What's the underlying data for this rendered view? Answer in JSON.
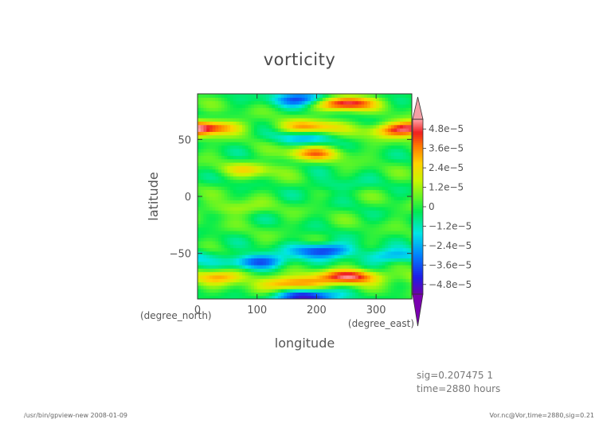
{
  "chart_data": {
    "type": "heatmap",
    "title": "vorticity",
    "xlabel": "longitude",
    "ylabel": "latitude",
    "x_unit": "(degree_east)",
    "y_unit": "(degree_north)",
    "xlim": [
      0,
      360
    ],
    "ylim": [
      -90,
      90
    ],
    "x_ticks": [
      "0",
      "100",
      "200",
      "300"
    ],
    "y_ticks": [
      "50",
      "0",
      "−50"
    ],
    "x_tick_values": [
      0,
      100,
      200,
      300
    ],
    "y_tick_values": [
      50,
      0,
      -50
    ],
    "colorbar": {
      "labels": [
        "4.8e−5",
        "3.6e−5",
        "2.4e−5",
        "1.2e−5",
        "0",
        "−1.2e−5",
        "−2.4e−5",
        "−3.6e−5",
        "−4.8e−5"
      ],
      "values": [
        4.8e-05,
        3.6e-05,
        2.4e-05,
        1.2e-05,
        0,
        -1.2e-05,
        -2.4e-05,
        -3.6e-05,
        -4.8e-05
      ],
      "range": [
        -5.4e-05,
        5.4e-05
      ],
      "extend": "both"
    },
    "field_features": [
      {
        "lon": 245,
        "lat": 82,
        "value": 5.4e-05
      },
      {
        "lon": 20,
        "lat": 61,
        "value": 4.2e-05
      },
      {
        "lon": 190,
        "lat": 61,
        "value": 3.5e-05
      },
      {
        "lon": 330,
        "lat": 58,
        "value": 3e-05
      },
      {
        "lon": 175,
        "lat": 52,
        "value": -2.2e-05
      },
      {
        "lon": 195,
        "lat": 38,
        "value": 3.2e-05
      },
      {
        "lon": 90,
        "lat": 24,
        "value": 2e-05
      },
      {
        "lon": 210,
        "lat": -47,
        "value": -4.2e-05
      },
      {
        "lon": 100,
        "lat": -57,
        "value": -3.8e-05
      },
      {
        "lon": 330,
        "lat": -52,
        "value": -2.5e-05
      },
      {
        "lon": 160,
        "lat": -76,
        "value": 4.2e-05
      },
      {
        "lon": 255,
        "lat": -70,
        "value": 5e-05
      },
      {
        "lon": 40,
        "lat": -70,
        "value": 3e-05
      },
      {
        "lon": 180,
        "lat": 86,
        "value": -4e-05
      },
      {
        "lon": 180,
        "lat": -88,
        "value": -5.2e-05
      },
      {
        "lon": 230,
        "lat": 10,
        "value": -1e-05
      },
      {
        "lon": 60,
        "lat": -10,
        "value": 1.4e-05
      }
    ],
    "grid": false,
    "colormap": "rainbow"
  },
  "info": {
    "line1": "sig=0.207475  1",
    "line2": "time=2880 hours"
  },
  "footer": {
    "left": "/usr/bin/gpview-new  2008-01-09",
    "right": "Vor.nc@Vor,time=2880,sig=0.21"
  }
}
